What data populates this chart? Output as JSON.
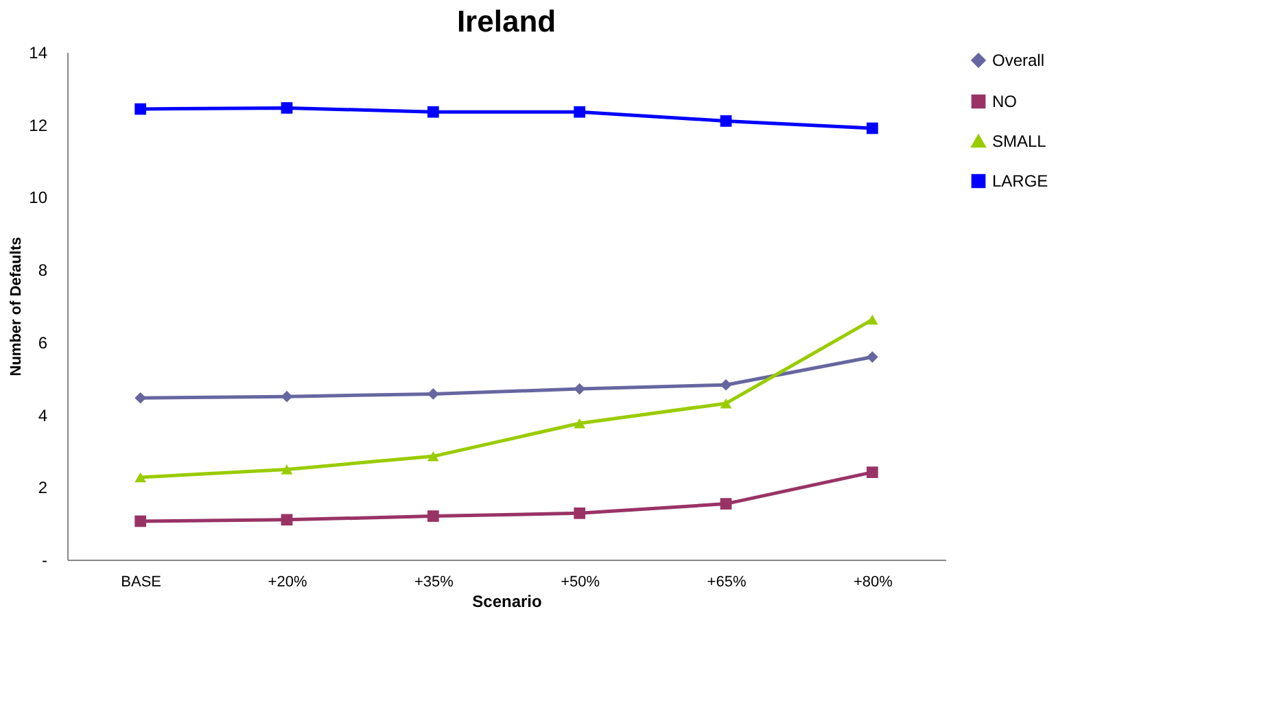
{
  "chart_data": {
    "type": "line",
    "title": "Ireland",
    "xlabel": "Scenario",
    "ylabel": "Number of Defaults",
    "categories": [
      "BASE",
      "+20%",
      "+35%",
      "+50%",
      "+65%",
      "+80%"
    ],
    "series": [
      {
        "name": "Overall",
        "color": "#6666a0",
        "marker": "diamond",
        "values": [
          4.46,
          4.5,
          4.57,
          4.71,
          4.82,
          5.59
        ]
      },
      {
        "name": "NO",
        "color": "#993366",
        "marker": "square",
        "values": [
          1.06,
          1.1,
          1.2,
          1.28,
          1.54,
          2.41
        ]
      },
      {
        "name": "SMALL",
        "color": "#99cc00",
        "marker": "triangle",
        "values": [
          2.27,
          2.49,
          2.85,
          3.76,
          4.31,
          6.62
        ]
      },
      {
        "name": "LARGE",
        "color": "#0000ff",
        "marker": "square",
        "values": [
          12.43,
          12.46,
          12.35,
          12.35,
          12.1,
          11.9
        ]
      }
    ],
    "ylim": [
      0,
      14
    ],
    "yticks": [
      {
        "value": 0,
        "label": "-"
      },
      2,
      4,
      6,
      8,
      10,
      12,
      14
    ],
    "grid": false,
    "legend": "right",
    "line_style": "solid"
  }
}
